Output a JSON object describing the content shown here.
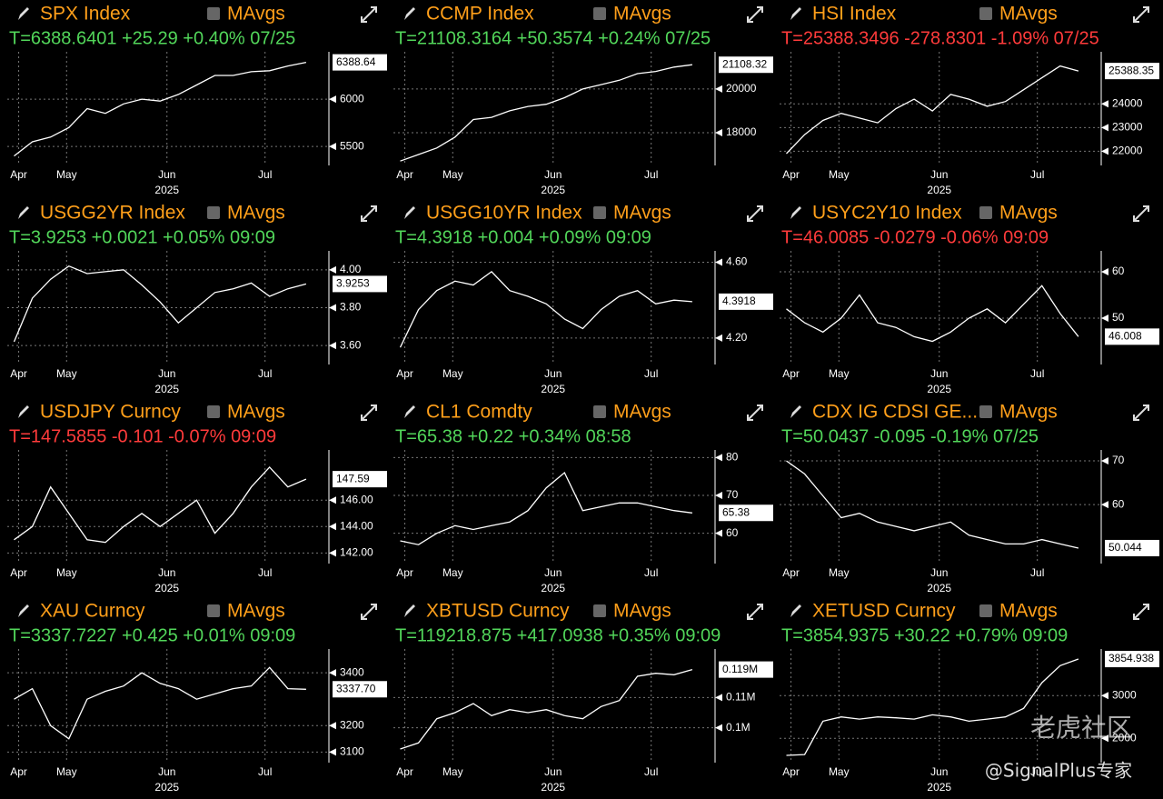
{
  "chart_data": [
    {
      "type": "line",
      "title": "SPX Index",
      "legend": "MAvgs",
      "quote": "T=6388.6401 +25.29 +0.40% 07/25",
      "quote_color": "#52d65a",
      "color": "#ffffff",
      "x": [
        2,
        2.8,
        3.6,
        4.4,
        5.2,
        6,
        6.8,
        7.6,
        8.4,
        9.2,
        10,
        10.8,
        11.6,
        12.4,
        13.2,
        14,
        14.8
      ],
      "values": [
        5400,
        5550,
        5600,
        5700,
        5900,
        5850,
        5950,
        6000,
        5980,
        6050,
        6150,
        6250,
        6250,
        6290,
        6300,
        6350,
        6388.64
      ],
      "last_label": "6388.64",
      "xlim": [
        1.7,
        15.8
      ],
      "xticks": [
        {
          "value": 2.2,
          "label": "Apr"
        },
        {
          "value": 4.3,
          "label": "May"
        },
        {
          "value": 8.7,
          "label": "Jun"
        },
        {
          "value": 13,
          "label": "Jul"
        }
      ],
      "xlabel": "2025",
      "ylim": [
        5300,
        6500
      ],
      "yticks": [
        5500,
        6000
      ],
      "grid": true
    },
    {
      "type": "line",
      "title": "CCMP Index",
      "legend": "MAvgs",
      "quote": "T=21108.3164 +50.3574 +0.24% 07/25",
      "quote_color": "#52d65a",
      "color": "#ffffff",
      "x": [
        2,
        2.8,
        3.6,
        4.4,
        5.2,
        6,
        6.8,
        7.6,
        8.4,
        9.2,
        10,
        10.8,
        11.6,
        12.4,
        13.2,
        14,
        14.8
      ],
      "values": [
        16700,
        17000,
        17300,
        17800,
        18600,
        18700,
        19000,
        19200,
        19300,
        19600,
        20000,
        20200,
        20400,
        20700,
        20800,
        21000,
        21108.32
      ],
      "last_label": "21108.32",
      "xlim": [
        1.7,
        15.8
      ],
      "xticks": [
        {
          "value": 2.2,
          "label": "Apr"
        },
        {
          "value": 4.3,
          "label": "May"
        },
        {
          "value": 8.7,
          "label": "Jun"
        },
        {
          "value": 13,
          "label": "Jul"
        }
      ],
      "xlabel": "2025",
      "ylim": [
        16500,
        21700
      ],
      "yticks": [
        18000,
        20000
      ],
      "grid": true
    },
    {
      "type": "line",
      "title": "HSI Index",
      "legend": "MAvgs",
      "quote": "T=25388.3496 -278.8301 -1.09% 07/25",
      "quote_color": "#ff3b3b",
      "color": "#ffffff",
      "x": [
        2,
        2.8,
        3.6,
        4.4,
        5.2,
        6,
        6.8,
        7.6,
        8.4,
        9.2,
        10,
        10.8,
        11.6,
        12.4,
        13.2,
        14,
        14.8
      ],
      "values": [
        21900,
        22700,
        23300,
        23600,
        23400,
        23200,
        23800,
        24200,
        23700,
        24400,
        24200,
        23900,
        24100,
        24600,
        25100,
        25600,
        25388.35
      ],
      "last_label": "25388.35",
      "xlim": [
        1.7,
        15.8
      ],
      "xticks": [
        {
          "value": 2.2,
          "label": "Apr"
        },
        {
          "value": 4.3,
          "label": "May"
        },
        {
          "value": 8.7,
          "label": "Jun"
        },
        {
          "value": 13,
          "label": "Jul"
        }
      ],
      "xlabel": "2025",
      "ylim": [
        21400,
        26200
      ],
      "yticks": [
        22000,
        23000,
        24000
      ],
      "grid": true
    },
    {
      "type": "line",
      "title": "USGG2YR Index",
      "legend": "MAvgs",
      "quote": "T=3.9253 +0.0021 +0.05% 09:09",
      "quote_color": "#52d65a",
      "color": "#ffffff",
      "x": [
        2,
        2.8,
        3.6,
        4.4,
        5.2,
        6,
        6.8,
        7.6,
        8.4,
        9.2,
        10,
        10.8,
        11.6,
        12.4,
        13.2,
        14,
        14.8
      ],
      "values": [
        3.62,
        3.85,
        3.95,
        4.02,
        3.98,
        3.99,
        4.0,
        3.92,
        3.83,
        3.72,
        3.8,
        3.88,
        3.9,
        3.93,
        3.86,
        3.9,
        3.9253
      ],
      "last_label": "3.9253",
      "xlim": [
        1.7,
        15.8
      ],
      "xticks": [
        {
          "value": 2.2,
          "label": "Apr"
        },
        {
          "value": 4.3,
          "label": "May"
        },
        {
          "value": 8.7,
          "label": "Jun"
        },
        {
          "value": 13,
          "label": "Jul"
        }
      ],
      "xlabel": "2025",
      "ylim": [
        3.5,
        4.1
      ],
      "yticks": [
        {
          "value": 3.6,
          "label": "3.60"
        },
        {
          "value": 3.8,
          "label": "3.80"
        },
        {
          "value": 4.0,
          "label": "4.00"
        }
      ],
      "grid": true
    },
    {
      "type": "line",
      "title": "USGG10YR Index",
      "legend": "MAvgs",
      "quote": "T=4.3918 +0.004 +0.09% 09:09",
      "quote_color": "#52d65a",
      "color": "#ffffff",
      "x": [
        2,
        2.8,
        3.6,
        4.4,
        5.2,
        6,
        6.8,
        7.6,
        8.4,
        9.2,
        10,
        10.8,
        11.6,
        12.4,
        13.2,
        14,
        14.8
      ],
      "values": [
        4.15,
        4.35,
        4.45,
        4.5,
        4.48,
        4.55,
        4.45,
        4.42,
        4.38,
        4.3,
        4.25,
        4.35,
        4.42,
        4.45,
        4.38,
        4.4,
        4.3918
      ],
      "last_label": "4.3918",
      "xlim": [
        1.7,
        15.8
      ],
      "xticks": [
        {
          "value": 2.2,
          "label": "Apr"
        },
        {
          "value": 4.3,
          "label": "May"
        },
        {
          "value": 8.7,
          "label": "Jun"
        },
        {
          "value": 13,
          "label": "Jul"
        }
      ],
      "xlabel": "2025",
      "ylim": [
        4.06,
        4.66
      ],
      "yticks": [
        {
          "value": 4.2,
          "label": "4.20"
        },
        {
          "value": 4.6,
          "label": "4.60"
        }
      ],
      "grid": true
    },
    {
      "type": "line",
      "title": "USYC2Y10 Index",
      "legend": "MAvgs",
      "quote": "T=46.0085 -0.0279 -0.06% 09:09",
      "quote_color": "#ff3b3b",
      "color": "#ffffff",
      "x": [
        2,
        2.8,
        3.6,
        4.4,
        5.2,
        6,
        6.8,
        7.6,
        8.4,
        9.2,
        10,
        10.8,
        11.6,
        12.4,
        13.2,
        14,
        14.8
      ],
      "values": [
        52,
        49,
        47,
        50,
        55,
        49,
        48,
        46,
        45,
        47,
        50,
        52,
        49,
        53,
        57,
        51,
        46.008
      ],
      "last_label": "46.008",
      "xlim": [
        1.7,
        15.8
      ],
      "xticks": [
        {
          "value": 2.2,
          "label": "Apr"
        },
        {
          "value": 4.3,
          "label": "May"
        },
        {
          "value": 8.7,
          "label": "Jun"
        },
        {
          "value": 13,
          "label": "Jul"
        }
      ],
      "xlabel": "2025",
      "ylim": [
        40,
        64.5
      ],
      "yticks": [
        50,
        60
      ],
      "grid": true
    },
    {
      "type": "line",
      "title": "USDJPY Curncy",
      "legend": "MAvgs",
      "quote": "T=147.5855 -0.101 -0.07% 09:09",
      "quote_color": "#ff3b3b",
      "color": "#ffffff",
      "x": [
        2,
        2.8,
        3.6,
        4.4,
        5.2,
        6,
        6.8,
        7.6,
        8.4,
        9.2,
        10,
        10.8,
        11.6,
        12.4,
        13.2,
        14,
        14.8
      ],
      "values": [
        143,
        144,
        147,
        145,
        143,
        142.8,
        144,
        145,
        144,
        145,
        146,
        143.5,
        145,
        147,
        148.5,
        147,
        147.59
      ],
      "last_label": "147.59",
      "xlim": [
        1.7,
        15.8
      ],
      "xticks": [
        {
          "value": 2.2,
          "label": "Apr"
        },
        {
          "value": 4.3,
          "label": "May"
        },
        {
          "value": 8.7,
          "label": "Jun"
        },
        {
          "value": 13,
          "label": "Jul"
        }
      ],
      "xlabel": "2025",
      "ylim": [
        141.2,
        149.8
      ],
      "yticks": [
        {
          "value": 142,
          "label": "142.00"
        },
        {
          "value": 144,
          "label": "144.00"
        },
        {
          "value": 146,
          "label": "146.00"
        }
      ],
      "grid": true
    },
    {
      "type": "line",
      "title": "CL1 Comdty",
      "legend": "MAvgs",
      "quote": "T=65.38 +0.22 +0.34% 08:58",
      "quote_color": "#52d65a",
      "color": "#ffffff",
      "x": [
        2,
        2.8,
        3.6,
        4.4,
        5.2,
        6,
        6.8,
        7.6,
        8.4,
        9.2,
        10,
        10.8,
        11.6,
        12.4,
        13.2,
        14,
        14.8
      ],
      "values": [
        58,
        57,
        60,
        62,
        61,
        62,
        63,
        66,
        72,
        76,
        66,
        67,
        68,
        68,
        67,
        66,
        65.38
      ],
      "last_label": "65.38",
      "xlim": [
        1.7,
        15.8
      ],
      "xticks": [
        {
          "value": 2.2,
          "label": "Apr"
        },
        {
          "value": 4.3,
          "label": "May"
        },
        {
          "value": 8.7,
          "label": "Jun"
        },
        {
          "value": 13,
          "label": "Jul"
        }
      ],
      "xlabel": "2025",
      "ylim": [
        52,
        82
      ],
      "yticks": [
        60,
        70,
        80
      ],
      "grid": true
    },
    {
      "type": "line",
      "title": "CDX IG CDSI GE...",
      "legend": "MAvgs",
      "quote": "T=50.0437 -0.095 -0.19% 07/25",
      "quote_color": "#52d65a",
      "color": "#ffffff",
      "x": [
        2,
        2.8,
        3.6,
        4.4,
        5.2,
        6,
        6.8,
        7.6,
        8.4,
        9.2,
        10,
        10.8,
        11.6,
        12.4,
        13.2,
        14,
        14.8
      ],
      "values": [
        70,
        67,
        62,
        57,
        58,
        56,
        55,
        54,
        55,
        56,
        53,
        52,
        51,
        51,
        52,
        51,
        50.044
      ],
      "last_label": "50.044",
      "xlim": [
        1.7,
        15.8
      ],
      "xticks": [
        {
          "value": 2.2,
          "label": "Apr"
        },
        {
          "value": 4.3,
          "label": "May"
        },
        {
          "value": 8.7,
          "label": "Jun"
        },
        {
          "value": 13,
          "label": "Jul"
        }
      ],
      "xlabel": "2025",
      "ylim": [
        46.5,
        72.5
      ],
      "yticks": [
        60,
        70
      ],
      "grid": true
    },
    {
      "type": "line",
      "title": "XAU Curncy",
      "legend": "MAvgs",
      "quote": "T=3337.7227 +0.425 +0.01% 09:09",
      "quote_color": "#52d65a",
      "color": "#ffffff",
      "x": [
        2,
        2.8,
        3.6,
        4.4,
        5.2,
        6,
        6.8,
        7.6,
        8.4,
        9.2,
        10,
        10.8,
        11.6,
        12.4,
        13.2,
        14,
        14.8
      ],
      "values": [
        3300,
        3340,
        3200,
        3150,
        3300,
        3330,
        3350,
        3400,
        3360,
        3340,
        3300,
        3320,
        3340,
        3350,
        3420,
        3340,
        3337.7
      ],
      "last_label": "3337.70",
      "xlim": [
        1.7,
        15.8
      ],
      "xticks": [
        {
          "value": 2.2,
          "label": "Apr"
        },
        {
          "value": 4.3,
          "label": "May"
        },
        {
          "value": 8.7,
          "label": "Jun"
        },
        {
          "value": 13,
          "label": "Jul"
        }
      ],
      "xlabel": "2025",
      "ylim": [
        3060,
        3490
      ],
      "yticks": [
        3100,
        3200,
        3400
      ],
      "grid": true
    },
    {
      "type": "line",
      "title": "XBTUSD Curncy",
      "legend": "MAvgs",
      "quote": "T=119218.875 +417.0938 +0.35% 09:09",
      "quote_color": "#52d65a",
      "color": "#ffffff",
      "x": [
        2,
        2.8,
        3.6,
        4.4,
        5.2,
        6,
        6.8,
        7.6,
        8.4,
        9.2,
        10,
        10.8,
        11.6,
        12.4,
        13.2,
        14,
        14.8
      ],
      "values": [
        93000,
        95000,
        103000,
        105000,
        108000,
        104000,
        106000,
        105000,
        106000,
        104000,
        103000,
        107000,
        109000,
        117000,
        118000,
        117500,
        119218.875
      ],
      "last_label": "0.119M",
      "xlim": [
        1.7,
        15.8
      ],
      "xticks": [
        {
          "value": 2.2,
          "label": "Apr"
        },
        {
          "value": 4.3,
          "label": "May"
        },
        {
          "value": 8.7,
          "label": "Jun"
        },
        {
          "value": 13,
          "label": "Jul"
        }
      ],
      "xlabel": "2025",
      "ylim": [
        88500,
        126000
      ],
      "yticks": [
        {
          "value": 100000,
          "label": "0.1M"
        },
        {
          "value": 110000,
          "label": "0.11M"
        }
      ],
      "grid": true
    },
    {
      "type": "line",
      "title": "XETUSD Curncy",
      "legend": "MAvgs",
      "quote": "T=3854.9375 +30.22 +0.79% 09:09",
      "quote_color": "#52d65a",
      "color": "#ffffff",
      "x": [
        2,
        2.8,
        3.6,
        4.4,
        5.2,
        6,
        6.8,
        7.6,
        8.4,
        9.2,
        10,
        10.8,
        11.6,
        12.4,
        13.2,
        14,
        14.8
      ],
      "values": [
        1600,
        1620,
        2400,
        2500,
        2450,
        2500,
        2480,
        2450,
        2550,
        2500,
        2400,
        2450,
        2500,
        2700,
        3300,
        3700,
        3854.9375
      ],
      "last_label": "3854.938",
      "xlim": [
        1.7,
        15.8
      ],
      "xticks": [
        {
          "value": 2.2,
          "label": "Apr"
        },
        {
          "value": 4.3,
          "label": "May"
        },
        {
          "value": 8.7,
          "label": "Jun"
        },
        {
          "value": 13,
          "label": "Jul"
        }
      ],
      "xlabel": "2025",
      "ylim": [
        1430,
        4090
      ],
      "yticks": [
        2000,
        3000
      ],
      "grid": true
    }
  ],
  "watermark": {
    "brand": "老虎社区",
    "handle": "@SignalPlus专家"
  }
}
